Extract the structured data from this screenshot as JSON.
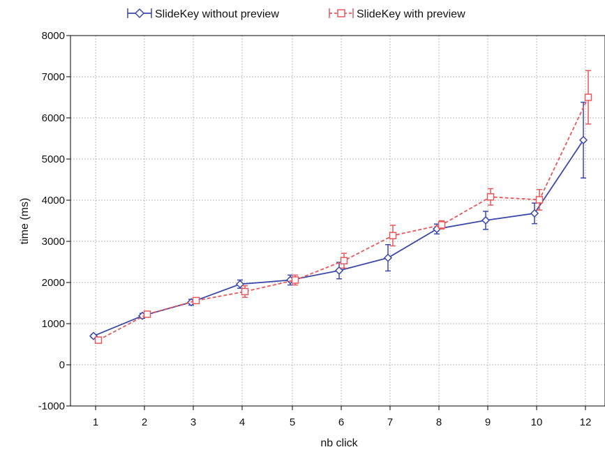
{
  "chart_data": {
    "type": "line",
    "title": "",
    "xlabel": "nb click",
    "ylabel": "time (ms)",
    "ylim": [
      -1000,
      8000
    ],
    "yticks": [
      -1000,
      0,
      1000,
      2000,
      3000,
      4000,
      5000,
      6000,
      7000,
      8000
    ],
    "categories": [
      "1",
      "2",
      "3",
      "4",
      "5",
      "6",
      "7",
      "8",
      "9",
      "10",
      "12"
    ],
    "grid": true,
    "legend_position": "top",
    "series": [
      {
        "name": "SlideKey without preview",
        "color": "#3a48a8",
        "line_style": "solid",
        "marker": "diamond",
        "values": [
          700,
          1190,
          1520,
          1960,
          2060,
          2290,
          2600,
          3300,
          3510,
          3680,
          5460
        ],
        "errors": [
          40,
          60,
          70,
          100,
          120,
          200,
          320,
          120,
          220,
          250,
          920
        ]
      },
      {
        "name": "SlideKey with preview",
        "color": "#e8575a",
        "line_style": "dashed",
        "marker": "square",
        "values": [
          600,
          1230,
          1560,
          1780,
          2060,
          2530,
          3140,
          3400,
          4080,
          4010,
          6500
        ],
        "errors": [
          30,
          60,
          60,
          140,
          120,
          180,
          250,
          100,
          200,
          250,
          650
        ]
      }
    ]
  }
}
